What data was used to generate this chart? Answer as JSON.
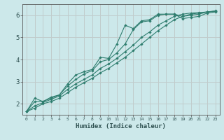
{
  "xlabel": "Humidex (Indice chaleur)",
  "ylabel": "",
  "background_color": "#cce8ea",
  "grid_color": "#c0cccc",
  "line_color": "#2e7d6e",
  "xlim": [
    -0.5,
    23.5
  ],
  "ylim": [
    1.5,
    6.5
  ],
  "yticks": [
    2,
    3,
    4,
    5,
    6
  ],
  "xticks": [
    0,
    1,
    2,
    3,
    4,
    5,
    6,
    7,
    8,
    9,
    10,
    11,
    12,
    13,
    14,
    15,
    16,
    17,
    18,
    19,
    20,
    21,
    22,
    23
  ],
  "series": [
    [
      1.65,
      2.25,
      2.1,
      2.25,
      2.4,
      2.9,
      3.3,
      3.45,
      3.55,
      4.1,
      4.05,
      4.7,
      5.55,
      5.4,
      5.75,
      5.8,
      6.05,
      6.05,
      6.05,
      5.95,
      6.0,
      6.05,
      6.15,
      6.2
    ],
    [
      1.65,
      2.1,
      2.1,
      2.3,
      2.4,
      2.8,
      3.1,
      3.35,
      3.5,
      3.9,
      4.0,
      4.3,
      4.7,
      5.35,
      5.7,
      5.75,
      6.0,
      6.05,
      6.05,
      5.85,
      5.9,
      5.95,
      6.1,
      6.15
    ],
    [
      1.65,
      1.9,
      2.05,
      2.2,
      2.35,
      2.65,
      2.9,
      3.1,
      3.3,
      3.6,
      3.8,
      4.05,
      4.35,
      4.65,
      5.0,
      5.25,
      5.55,
      5.75,
      5.95,
      6.05,
      6.1,
      6.12,
      6.15,
      6.18
    ],
    [
      1.65,
      1.8,
      2.0,
      2.1,
      2.25,
      2.5,
      2.75,
      2.95,
      3.15,
      3.4,
      3.6,
      3.85,
      4.1,
      4.4,
      4.7,
      5.0,
      5.3,
      5.55,
      5.8,
      5.95,
      6.05,
      6.1,
      6.15,
      6.18
    ]
  ]
}
